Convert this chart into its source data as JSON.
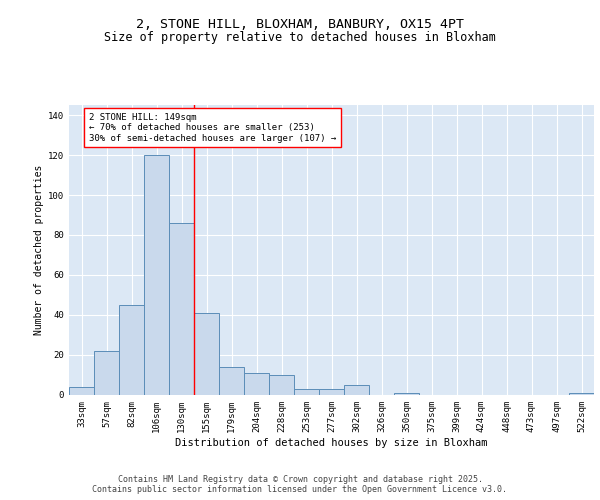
{
  "title1": "2, STONE HILL, BLOXHAM, BANBURY, OX15 4PT",
  "title2": "Size of property relative to detached houses in Bloxham",
  "xlabel": "Distribution of detached houses by size in Bloxham",
  "ylabel": "Number of detached properties",
  "bin_labels": [
    "33sqm",
    "57sqm",
    "82sqm",
    "106sqm",
    "130sqm",
    "155sqm",
    "179sqm",
    "204sqm",
    "228sqm",
    "253sqm",
    "277sqm",
    "302sqm",
    "326sqm",
    "350sqm",
    "375sqm",
    "399sqm",
    "424sqm",
    "448sqm",
    "473sqm",
    "497sqm",
    "522sqm"
  ],
  "bar_values": [
    4,
    22,
    45,
    120,
    86,
    41,
    14,
    11,
    10,
    3,
    3,
    5,
    0,
    1,
    0,
    0,
    0,
    0,
    0,
    0,
    1
  ],
  "bar_color": "#c9d9ec",
  "bar_edge_color": "#5b8db8",
  "red_line_index": 4.5,
  "annotation_box_text": "2 STONE HILL: 149sqm\n← 70% of detached houses are smaller (253)\n30% of semi-detached houses are larger (107) →",
  "ylim": [
    0,
    145
  ],
  "yticks": [
    0,
    20,
    40,
    60,
    80,
    100,
    120,
    140
  ],
  "background_color": "#dce8f5",
  "grid_color": "#ffffff",
  "fig_bg_color": "#ffffff",
  "footer_text": "Contains HM Land Registry data © Crown copyright and database right 2025.\nContains public sector information licensed under the Open Government Licence v3.0.",
  "title_fontsize": 9.5,
  "subtitle_fontsize": 8.5,
  "annot_fontsize": 6.5,
  "footer_fontsize": 6,
  "ylabel_fontsize": 7,
  "xlabel_fontsize": 7.5,
  "tick_fontsize": 6.5
}
